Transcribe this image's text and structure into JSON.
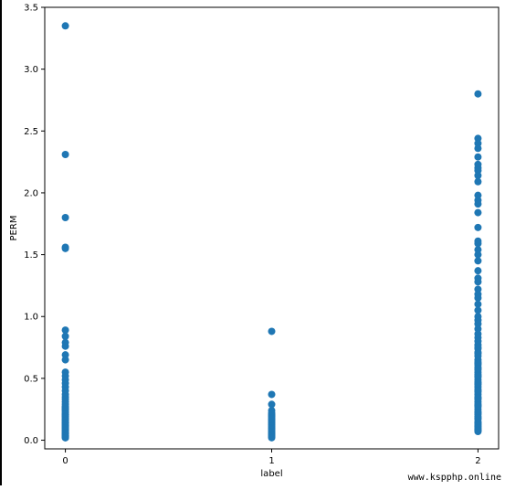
{
  "chart_data": {
    "type": "scatter",
    "xlabel": "label",
    "ylabel": "PERM",
    "xlim": [
      -0.1,
      2.1
    ],
    "ylim": [
      -0.07,
      3.5
    ],
    "xticks": [
      0,
      1,
      2
    ],
    "xtick_labels": [
      "0",
      "1",
      "2"
    ],
    "yticks": [
      0.0,
      0.5,
      1.0,
      1.5,
      2.0,
      2.5,
      3.0,
      3.5
    ],
    "ytick_labels": [
      "0.0",
      "0.5",
      "1.0",
      "1.5",
      "2.0",
      "2.5",
      "3.0",
      "3.5"
    ],
    "grid": false,
    "marker_color": "#1f77b4",
    "series": [
      {
        "x": [
          0,
          0,
          0,
          0,
          0,
          0,
          0,
          0,
          0,
          0,
          0,
          0,
          0,
          0,
          0,
          0,
          0,
          0,
          0,
          0,
          0,
          0,
          0,
          0,
          0,
          0,
          0,
          0,
          0,
          0,
          0,
          0,
          0,
          0,
          0,
          0,
          0,
          0,
          0,
          0,
          0,
          0,
          0,
          0,
          0,
          0,
          0,
          0,
          0,
          0,
          0,
          0,
          0,
          0,
          0,
          0,
          0,
          0,
          0,
          0,
          0,
          0
        ],
        "y": [
          3.35,
          2.31,
          1.8,
          1.56,
          1.55,
          0.89,
          0.84,
          0.79,
          0.76,
          0.69,
          0.65,
          0.55,
          0.52,
          0.49,
          0.46,
          0.43,
          0.4,
          0.37,
          0.35,
          0.33,
          0.31,
          0.29,
          0.27,
          0.26,
          0.25,
          0.24,
          0.23,
          0.22,
          0.21,
          0.2,
          0.19,
          0.18,
          0.17,
          0.16,
          0.15,
          0.14,
          0.13,
          0.12,
          0.11,
          0.1,
          0.09,
          0.08,
          0.07,
          0.06,
          0.05,
          0.04,
          0.03,
          0.02,
          0.27,
          0.25,
          0.21,
          0.19,
          0.16,
          0.14,
          0.12,
          0.1,
          0.08,
          0.06,
          0.05,
          0.04,
          0.03,
          0.02
        ]
      },
      {
        "x": [
          1,
          1,
          1,
          1,
          1,
          1,
          1,
          1,
          1,
          1,
          1,
          1,
          1,
          1,
          1,
          1,
          1,
          1,
          1,
          1,
          1,
          1,
          1,
          1,
          1,
          1,
          1,
          1
        ],
        "y": [
          0.88,
          0.37,
          0.29,
          0.24,
          0.22,
          0.21,
          0.2,
          0.19,
          0.18,
          0.17,
          0.16,
          0.15,
          0.14,
          0.13,
          0.12,
          0.11,
          0.1,
          0.09,
          0.08,
          0.07,
          0.06,
          0.05,
          0.05,
          0.04,
          0.04,
          0.03,
          0.03,
          0.02
        ]
      },
      {
        "x": [
          2,
          2,
          2,
          2,
          2,
          2,
          2,
          2,
          2,
          2,
          2,
          2,
          2,
          2,
          2,
          2,
          2,
          2,
          2,
          2,
          2,
          2,
          2,
          2,
          2,
          2,
          2,
          2,
          2,
          2,
          2,
          2,
          2,
          2,
          2,
          2,
          2,
          2,
          2,
          2,
          2,
          2,
          2,
          2,
          2,
          2,
          2,
          2,
          2,
          2,
          2,
          2,
          2,
          2,
          2,
          2,
          2,
          2,
          2,
          2,
          2,
          2,
          2,
          2,
          2,
          2,
          2,
          2,
          2,
          2,
          2,
          2,
          2,
          2,
          2,
          2,
          2,
          2,
          2,
          2,
          2,
          2,
          2,
          2,
          2
        ],
        "y": [
          2.8,
          2.44,
          2.4,
          2.36,
          2.29,
          2.23,
          2.2,
          2.18,
          2.14,
          2.09,
          1.98,
          1.94,
          1.91,
          1.84,
          1.72,
          1.61,
          1.59,
          1.54,
          1.5,
          1.45,
          1.37,
          1.31,
          1.28,
          1.22,
          1.18,
          1.15,
          1.1,
          1.05,
          1.0,
          0.97,
          0.94,
          0.9,
          0.86,
          0.83,
          0.8,
          0.77,
          0.74,
          0.71,
          0.68,
          0.65,
          0.63,
          0.61,
          0.59,
          0.57,
          0.55,
          0.53,
          0.51,
          0.49,
          0.47,
          0.45,
          0.43,
          0.41,
          0.39,
          0.37,
          0.35,
          0.33,
          0.31,
          0.29,
          0.27,
          0.25,
          0.23,
          0.21,
          0.19,
          0.17,
          0.15,
          0.13,
          0.11,
          0.09,
          0.08,
          0.07,
          0.75,
          0.7,
          0.62,
          0.58,
          0.52,
          0.46,
          0.4,
          0.34,
          0.28,
          0.22,
          0.18,
          0.14,
          0.12,
          0.1,
          0.08
        ]
      }
    ]
  },
  "watermark": "www.kspphp.online"
}
